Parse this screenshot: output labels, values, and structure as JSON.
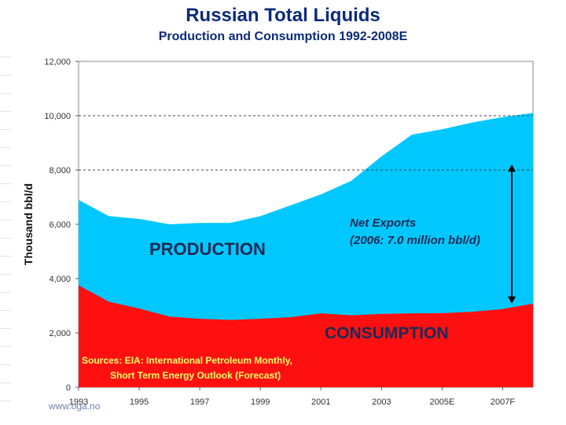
{
  "chart_data": {
    "type": "area",
    "title": "Russian Total Liquids",
    "subtitle": "Production and Consumption 1992-2008E",
    "ylabel": "Thousand bbl/d",
    "xlabel": "",
    "ylim": [
      0,
      12000
    ],
    "xlim": [
      1993,
      2008
    ],
    "y_ticks": [
      0,
      2000,
      4000,
      6000,
      8000,
      10000,
      12000
    ],
    "y_tick_labels": [
      "0",
      "2,000",
      "4,000",
      "6,000",
      "8,000",
      "10,000",
      "12,000"
    ],
    "x_ticks": [
      1993,
      1995,
      1997,
      1999,
      2001,
      2003,
      2005,
      2007
    ],
    "x_tick_labels": [
      "1993",
      "1995",
      "1997",
      "1999",
      "2001",
      "2003",
      "2005E",
      "2007F"
    ],
    "grid": "horizontal dashed at 8,000 and 10,000",
    "series": [
      {
        "name": "Production",
        "color": "#00c8ff",
        "x": [
          1993,
          1994,
          1995,
          1996,
          1997,
          1998,
          1999,
          2000,
          2001,
          2002,
          2003,
          2004,
          2005,
          2006,
          2007,
          2008
        ],
        "values": [
          6900,
          6300,
          6200,
          6000,
          6050,
          6050,
          6300,
          6700,
          7100,
          7600,
          8500,
          9300,
          9500,
          9750,
          9950,
          10100
        ]
      },
      {
        "name": "Consumption",
        "color": "#ff1010",
        "x": [
          1993,
          1994,
          1995,
          1996,
          1997,
          1998,
          1999,
          2000,
          2001,
          2002,
          2003,
          2004,
          2005,
          2006,
          2007,
          2008
        ],
        "values": [
          3750,
          3150,
          2900,
          2600,
          2520,
          2480,
          2520,
          2580,
          2720,
          2650,
          2700,
          2720,
          2730,
          2780,
          2880,
          3080
        ]
      }
    ],
    "annotations": {
      "production_label": "PRODUCTION",
      "consumption_label": "CONSUMPTION",
      "net_exports_line1": "Net Exports",
      "net_exports_line2": "(2006: 7.0 million bbl/d)",
      "sources_line1": "Sources: EIA: International Petroleum Monthly,",
      "sources_line2": "Short Term Energy Outlook (Forecast)",
      "arrow_from": 3080,
      "arrow_to": 8200
    },
    "colors": {
      "title": "#0a2a7a",
      "annotation_dark": "#1a2a55",
      "sources": "#ffff66",
      "grid": "#444444"
    }
  },
  "footer": {
    "watermark": "www.oga.no"
  }
}
